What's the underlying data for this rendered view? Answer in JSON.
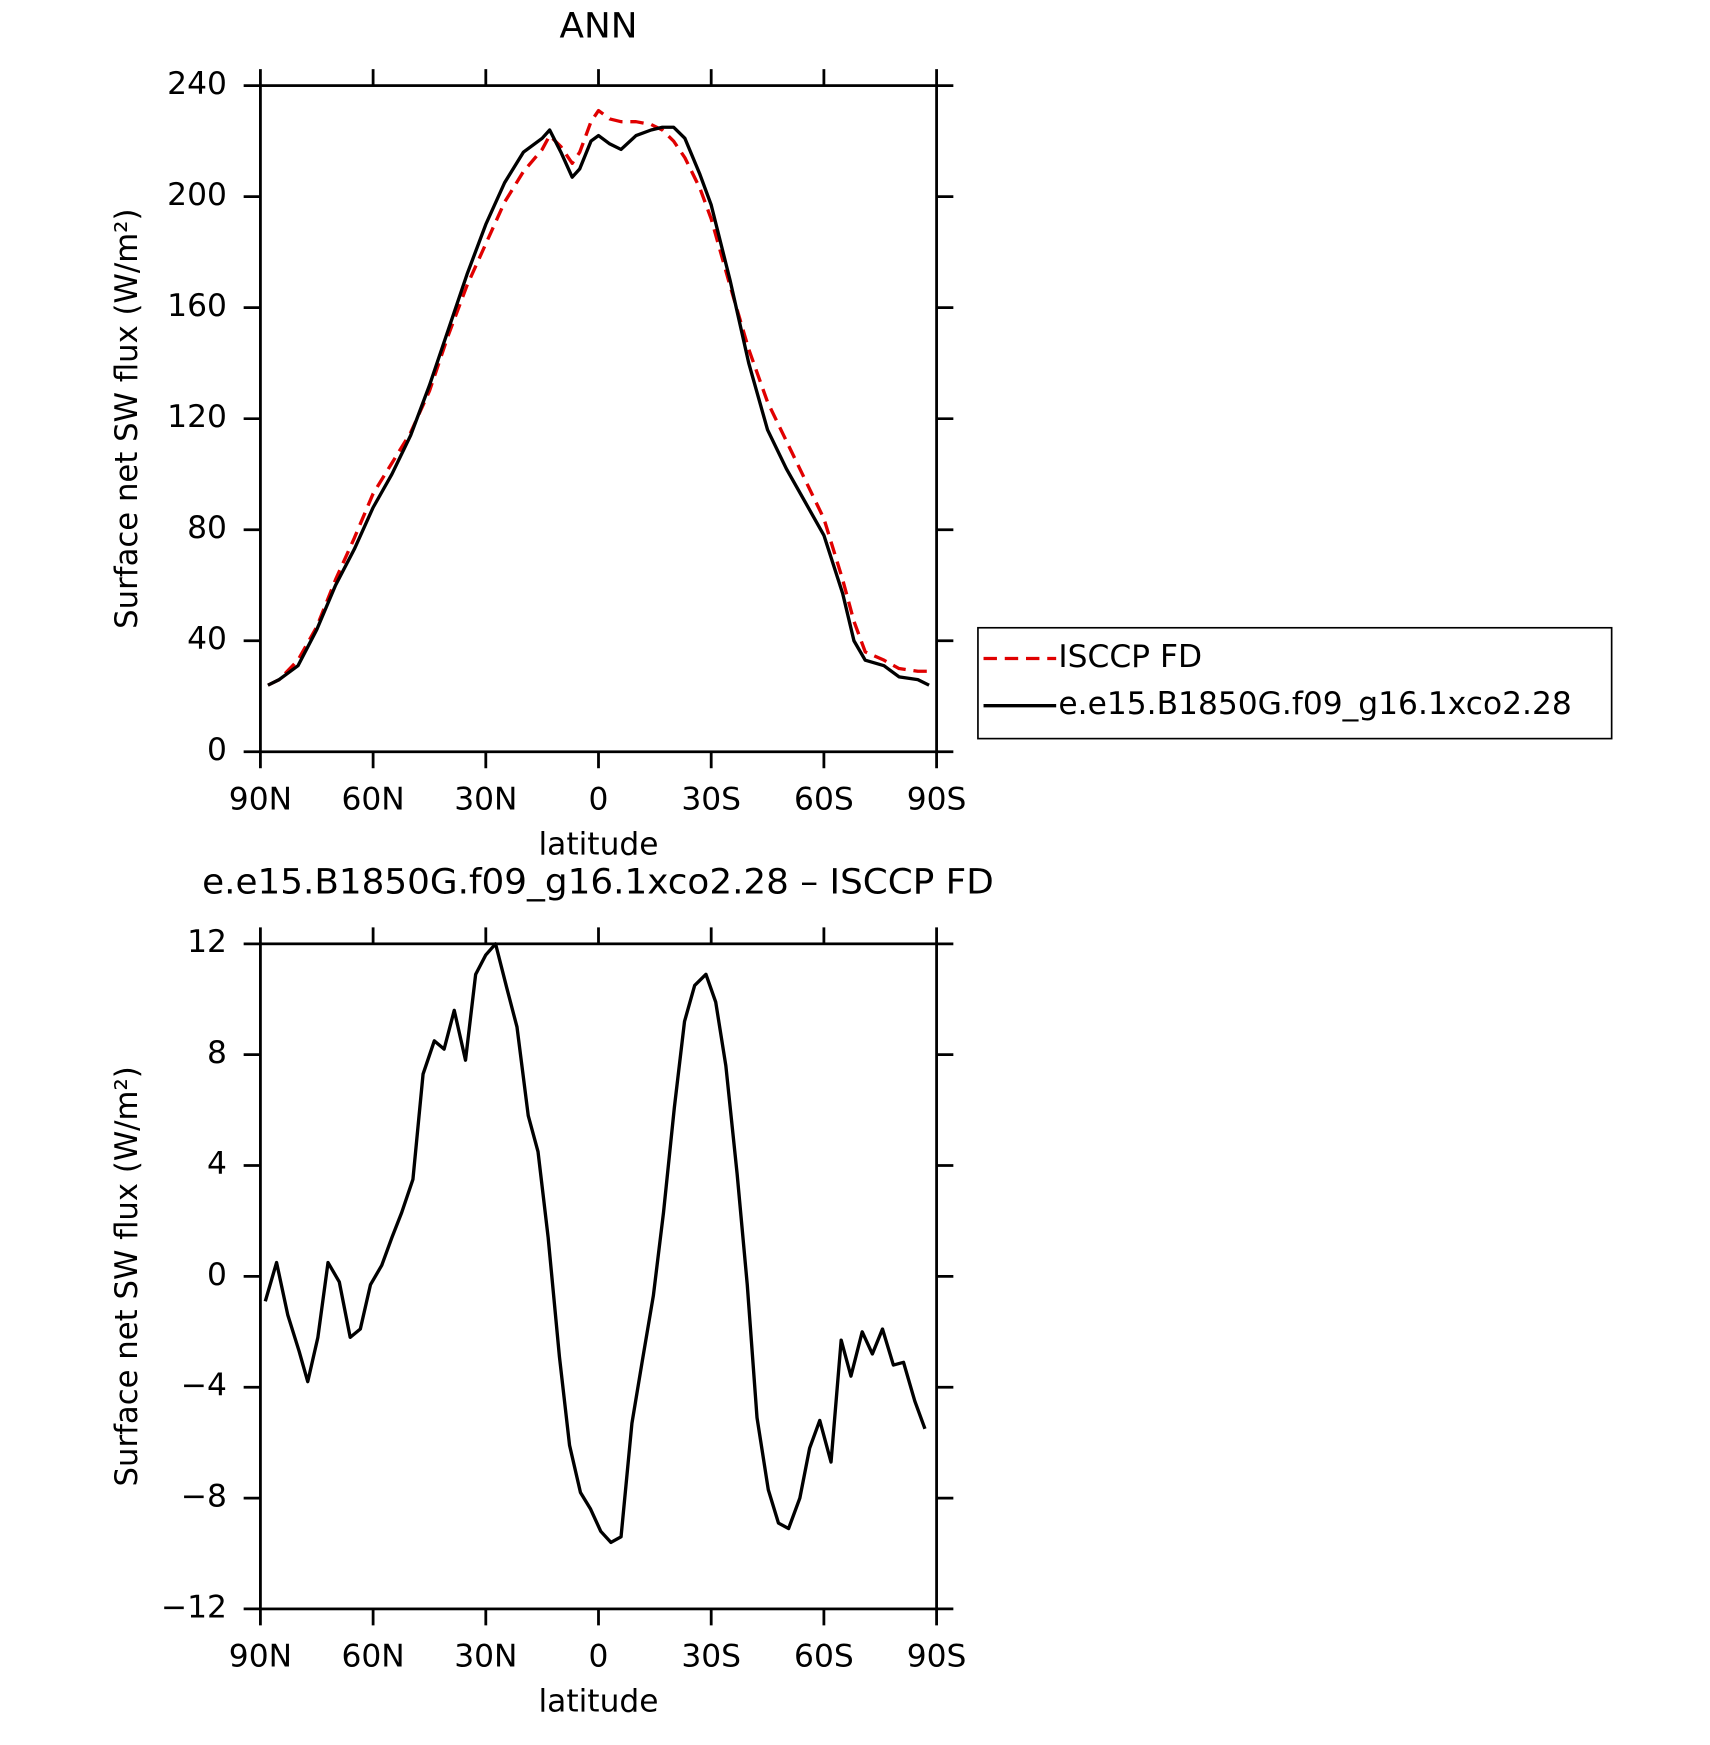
{
  "chart_data": [
    {
      "type": "line",
      "title": "ANN",
      "x_label": "latitude",
      "y_label": "Surface net SW flux (W/m²)",
      "x": [
        88,
        85,
        80,
        75,
        70,
        65,
        60,
        55,
        50,
        45,
        40,
        35,
        30,
        25,
        20,
        15,
        13,
        10,
        7,
        5,
        2,
        0,
        -3,
        -6,
        -10,
        -14,
        -17,
        -20,
        -23,
        -27,
        -30,
        -35,
        -40,
        -45,
        -50,
        -55,
        -60,
        -65,
        -68,
        -71,
        -76,
        -80,
        -85,
        -88
      ],
      "series": [
        {
          "name": "ISCCP FD",
          "color": "#e00000",
          "dash": true,
          "values": [
            24,
            26,
            33,
            45,
            62,
            77,
            93,
            104,
            115,
            130,
            150,
            168,
            183,
            198,
            209,
            217,
            222,
            218,
            212,
            216,
            227,
            231,
            228,
            227,
            227,
            226,
            224,
            220,
            214,
            203,
            192,
            168,
            145,
            126,
            112,
            98,
            84,
            62,
            47,
            36,
            33,
            30,
            29,
            29
          ]
        },
        {
          "name": "e.e15.B1850G.f09_g16.1xco2.28",
          "color": "#000000",
          "dash": false,
          "values": [
            24,
            26,
            31,
            44,
            60,
            73,
            88,
            100,
            114,
            132,
            152,
            172,
            190,
            205,
            216,
            221,
            224,
            216,
            207,
            210,
            220,
            222,
            219,
            217,
            222,
            224,
            225,
            225,
            221,
            208,
            197,
            170,
            140,
            116,
            102,
            90,
            78,
            57,
            40,
            33,
            31,
            27,
            26,
            24
          ]
        }
      ],
      "xlim": [
        90,
        -90
      ],
      "xticks": [
        {
          "value": 90,
          "label": "90N"
        },
        {
          "value": 60,
          "label": "60N"
        },
        {
          "value": 30,
          "label": "30N"
        },
        0,
        {
          "value": -30,
          "label": "30S"
        },
        {
          "value": -60,
          "label": "60S"
        },
        {
          "value": -90,
          "label": "90S"
        }
      ],
      "ylim": [
        0,
        240
      ],
      "yticks": [
        0,
        40,
        80,
        120,
        160,
        200,
        240
      ],
      "legend": "right"
    },
    {
      "type": "line",
      "title": "e.e15.B1850G.f09_g16.1xco2.28 – ISCCP FD",
      "x_label": "latitude",
      "y_label": "Surface net SW flux (W/m²)",
      "x": [
        88.7,
        85.7,
        82.7,
        79.7,
        77.4,
        74.7,
        72.0,
        69.0,
        66.1,
        63.4,
        60.7,
        57.7,
        55.0,
        52.4,
        49.4,
        46.7,
        43.7,
        41.1,
        38.4,
        35.4,
        32.7,
        30.0,
        27.4,
        24.4,
        21.7,
        18.7,
        16.1,
        13.4,
        10.4,
        7.7,
        4.8,
        2.1,
        -0.6,
        -3.3,
        -6.0,
        -8.9,
        -11.6,
        -14.6,
        -17.3,
        -20.2,
        -22.9,
        -25.6,
        -28.6,
        -31.2,
        -33.9,
        -36.9,
        -39.6,
        -42.2,
        -45.2,
        -47.9,
        -50.6,
        -53.6,
        -56.2,
        -58.9,
        -61.9,
        -64.6,
        -67.2,
        -70.2,
        -72.9,
        -75.6,
        -78.5,
        -81.2,
        -84.2,
        -86.9
      ],
      "values": [
        -0.9,
        0.5,
        -1.4,
        -2.7,
        -3.8,
        -2.2,
        0.5,
        -0.2,
        -2.2,
        -1.9,
        -0.3,
        0.4,
        1.4,
        2.3,
        3.5,
        7.3,
        8.5,
        8.2,
        9.6,
        7.8,
        10.9,
        11.6,
        12.0,
        10.4,
        9.0,
        5.8,
        4.5,
        1.4,
        -2.9,
        -6.1,
        -7.8,
        -8.4,
        -9.2,
        -9.6,
        -9.4,
        -5.3,
        -3.1,
        -0.7,
        2.3,
        6.1,
        9.2,
        10.5,
        10.9,
        9.9,
        7.6,
        3.7,
        -0.3,
        -5.1,
        -7.7,
        -8.9,
        -9.1,
        -8.0,
        -6.2,
        -5.2,
        -6.7,
        -2.3,
        -3.6,
        -2.0,
        -2.8,
        -1.9,
        -3.2,
        -3.1,
        -4.5,
        -5.5
      ],
      "color": "#000000",
      "xlim": [
        90,
        -90
      ],
      "xticks": [
        {
          "value": 90,
          "label": "90N"
        },
        {
          "value": 60,
          "label": "60N"
        },
        {
          "value": 30,
          "label": "30N"
        },
        0,
        {
          "value": -30,
          "label": "30S"
        },
        {
          "value": -60,
          "label": "60S"
        },
        {
          "value": -90,
          "label": "90S"
        }
      ],
      "ylim": [
        -12,
        12
      ],
      "yticks": [
        {
          "value": -12,
          "label": "−12"
        },
        {
          "value": -8,
          "label": "−8"
        },
        {
          "value": -4,
          "label": "−4"
        },
        0,
        4,
        8,
        12
      ]
    }
  ]
}
